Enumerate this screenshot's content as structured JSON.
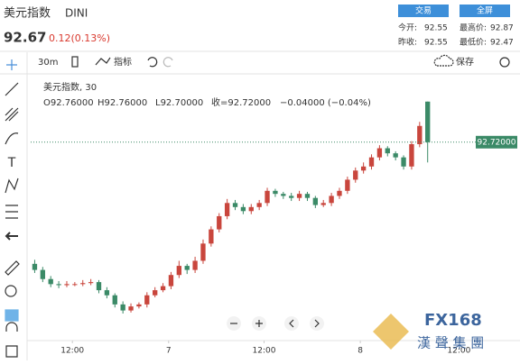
{
  "header": {
    "title": "美元指数",
    "symbol": "DINI",
    "price": "92.67",
    "change": "0.12(0.13%)",
    "buttons": [
      "交易",
      "全屏"
    ],
    "stats": [
      [
        "今开:",
        "92.55"
      ],
      [
        "最高价:",
        "92.87"
      ],
      [
        "昨收:",
        "92.55"
      ],
      [
        "最低价:",
        "92.47"
      ]
    ]
  },
  "toolbar": {
    "interval": "30m",
    "indicators": "指标",
    "save": "保存"
  },
  "legend": {
    "name": "美元指数, 30",
    "open": "O92.76000",
    "high": "H92.76000",
    "low": "L92.70000",
    "close": "收=92.72000",
    "change": "−0.04000 (−0.04%)"
  },
  "watermark": {
    "logo": "FX168",
    "name": "漢 聲 集 團"
  },
  "chart_data": {
    "type": "candlestick",
    "x": [
      0,
      1,
      2,
      3,
      4,
      5,
      6,
      7,
      8,
      9,
      10,
      11,
      12,
      13,
      14,
      15,
      16,
      17,
      18,
      19,
      20,
      21,
      22,
      23,
      24,
      25,
      26,
      27,
      28,
      29,
      30,
      31,
      32,
      33,
      34,
      35,
      36,
      37,
      38,
      39,
      40,
      41,
      42,
      43,
      44,
      45,
      46,
      47,
      48,
      49
    ],
    "open": [
      92.6,
      92.594,
      92.585,
      92.58,
      92.579,
      92.58,
      92.58,
      92.581,
      92.582,
      92.574,
      92.569,
      92.56,
      92.554,
      92.558,
      92.56,
      92.569,
      92.574,
      92.578,
      92.589,
      92.598,
      92.594,
      92.603,
      92.62,
      92.634,
      92.647,
      92.66,
      92.656,
      92.652,
      92.656,
      92.66,
      92.672,
      92.669,
      92.667,
      92.665,
      92.669,
      92.665,
      92.658,
      92.66,
      92.667,
      92.672,
      92.683,
      92.692,
      92.696,
      92.705,
      92.714,
      92.709,
      92.705,
      92.696,
      92.718,
      92.76
    ],
    "high": [
      92.604,
      92.597,
      92.588,
      92.583,
      92.583,
      92.582,
      92.584,
      92.585,
      92.584,
      92.577,
      92.571,
      92.563,
      92.561,
      92.562,
      92.572,
      92.577,
      92.581,
      92.592,
      92.603,
      92.6,
      92.607,
      92.624,
      92.637,
      92.65,
      92.664,
      92.663,
      92.659,
      92.659,
      92.663,
      92.675,
      92.674,
      92.671,
      92.67,
      92.672,
      92.671,
      92.667,
      92.663,
      92.67,
      92.675,
      92.686,
      92.695,
      92.7,
      92.708,
      92.717,
      92.716,
      92.711,
      92.707,
      92.721,
      92.74,
      92.76
    ],
    "low": [
      92.591,
      92.582,
      92.577,
      92.576,
      92.577,
      92.578,
      92.578,
      92.579,
      92.571,
      92.566,
      92.557,
      92.551,
      92.552,
      92.556,
      92.557,
      92.567,
      92.572,
      92.575,
      92.586,
      92.59,
      92.591,
      92.6,
      92.617,
      92.631,
      92.644,
      92.653,
      92.649,
      92.649,
      92.653,
      92.657,
      92.666,
      92.664,
      92.662,
      92.662,
      92.662,
      92.655,
      92.656,
      92.657,
      92.664,
      92.669,
      92.68,
      92.689,
      92.693,
      92.702,
      92.706,
      92.702,
      92.693,
      92.693,
      92.715,
      92.7
    ],
    "close": [
      92.594,
      92.585,
      92.58,
      92.579,
      92.58,
      92.58,
      92.581,
      92.582,
      92.574,
      92.569,
      92.56,
      92.554,
      92.558,
      92.56,
      92.569,
      92.574,
      92.578,
      92.589,
      92.598,
      92.594,
      92.603,
      92.62,
      92.634,
      92.647,
      92.66,
      92.656,
      92.652,
      92.656,
      92.66,
      92.672,
      92.669,
      92.667,
      92.665,
      92.669,
      92.665,
      92.658,
      92.66,
      92.667,
      92.672,
      92.683,
      92.692,
      92.696,
      92.705,
      92.714,
      92.709,
      92.705,
      92.696,
      92.718,
      92.736,
      92.72
    ],
    "up_color": "#c9463d",
    "down_color": "#3b8a67",
    "xlim": [
      -0.5,
      55
    ],
    "ylim": [
      92.527,
      92.782
    ],
    "xticks": [
      {
        "value": 4.7,
        "label": "12:00"
      },
      {
        "value": 16.7,
        "label": "7"
      },
      {
        "value": 28.6,
        "label": "12:00"
      },
      {
        "value": 40.6,
        "label": "8"
      },
      {
        "value": 52.9,
        "label": "12:00"
      }
    ],
    "last_price": {
      "value": 92.72,
      "label": "92.72000"
    },
    "last_price_color": "#3b8a67"
  }
}
